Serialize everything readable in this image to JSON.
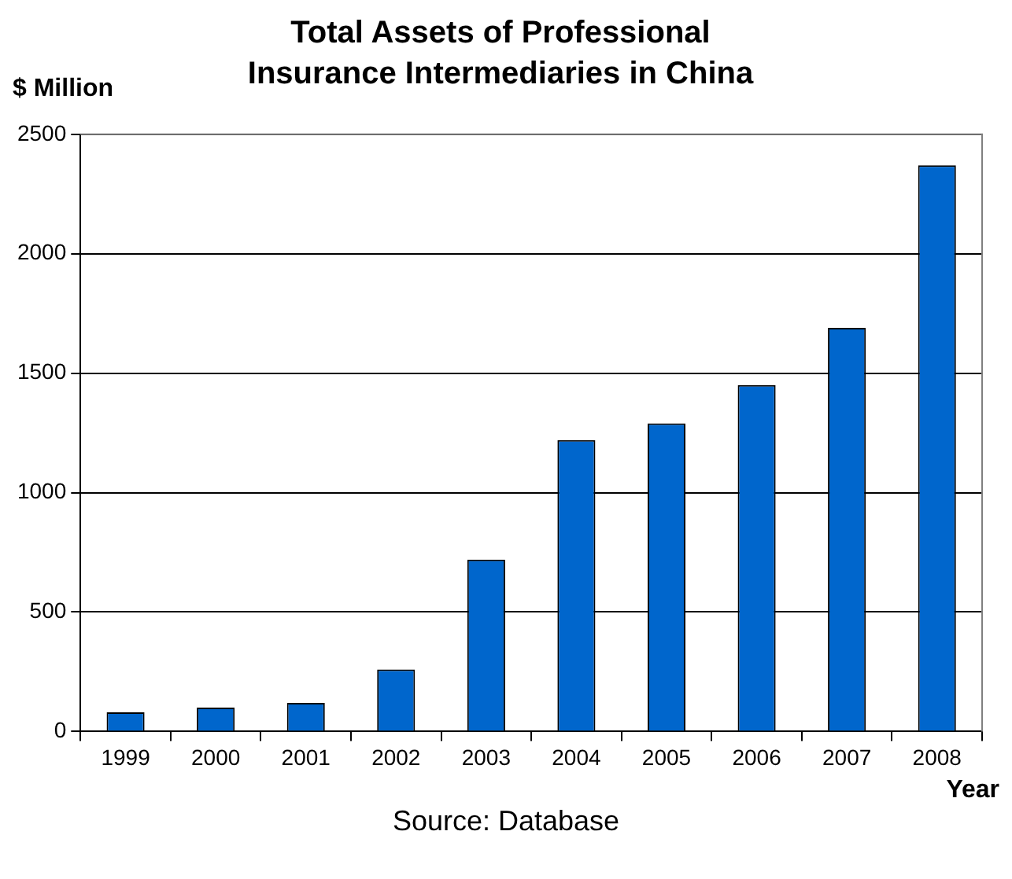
{
  "chart_data": {
    "type": "bar",
    "title": "Total Assets of Professional Insurance Intermediaries in China",
    "ylabel": "$ Million",
    "xlabel": "Year",
    "annotations": [
      "Source: Database"
    ],
    "categories": [
      "1999",
      "2000",
      "2001",
      "2002",
      "2003",
      "2004",
      "2005",
      "2006",
      "2007",
      "2008"
    ],
    "values": [
      80,
      100,
      120,
      260,
      720,
      1220,
      1290,
      1450,
      1690,
      2370
    ],
    "color": "#0066cc",
    "ylim": [
      0,
      2500
    ],
    "yticks": [
      0,
      500,
      1000,
      1500,
      2000,
      2500
    ],
    "grid": "y",
    "legend": false
  }
}
